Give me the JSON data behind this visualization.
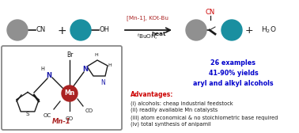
{
  "bg_color": "#ffffff",
  "gray_color": "#909090",
  "teal_color": "#1a8fa0",
  "mn_red": "#aa2222",
  "n_blue": "#1a1aaa",
  "red_color": "#cc0000",
  "blue_color": "#0000cc",
  "black": "#1a1a1a",
  "adv_red": "#cc0000",
  "mn_bracket_gray": "#888888",
  "arrow_label1": "[Mn-1], KOt-Bu",
  "arrow_label2_a": "tBuOH, ",
  "arrow_label2_b": "heat",
  "results1": "26 examples",
  "results2": "41-90% yields",
  "results3": "aryl and alkyl alcohols",
  "adv_title": "Advantages:",
  "adv1": "(i) alcohols: cheap industrial feedstock",
  "adv2": "(ii) readily available Mn catalysts",
  "adv3": "(iii) atom economical & no stoichiometric base required",
  "adv4": "(iv) total synthesis of anipamil",
  "mn1_label": "Mn-1"
}
